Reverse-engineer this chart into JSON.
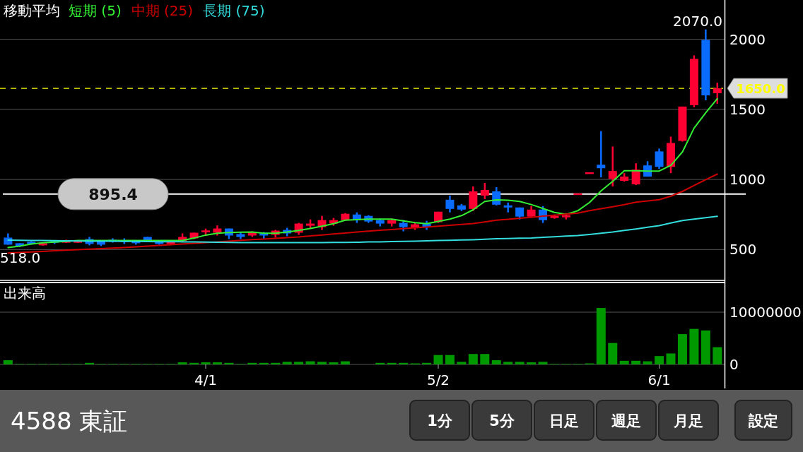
{
  "chart_data": [
    {
      "type": "candlestick",
      "title": "移動平均",
      "legend": "top",
      "grid": "y",
      "tick_labels": "y",
      "categories": [
        null,
        null,
        null,
        null,
        null,
        null,
        null,
        null,
        null,
        null,
        null,
        null,
        null,
        null,
        null,
        null,
        null,
        null,
        null,
        null,
        null,
        null,
        null,
        null,
        null,
        null,
        null,
        null,
        null,
        null,
        null,
        null,
        null,
        null,
        null,
        null,
        null,
        null,
        null,
        null,
        null,
        null,
        null,
        null,
        null,
        null,
        null,
        null,
        null,
        null,
        null,
        null,
        null,
        null,
        null,
        null,
        null,
        null,
        null,
        null,
        null,
        null
      ],
      "ohlc": [
        [
          585,
          615,
          535,
          535
        ],
        [
          545,
          545,
          518,
          525
        ],
        [
          555,
          560,
          535,
          540
        ],
        [
          530,
          550,
          528,
          545
        ],
        [
          555,
          560,
          540,
          545
        ],
        [
          550,
          570,
          548,
          555
        ],
        [
          550,
          558,
          548,
          555
        ],
        [
          575,
          590,
          530,
          540
        ],
        [
          560,
          560,
          525,
          535
        ],
        [
          570,
          580,
          550,
          555
        ],
        [
          560,
          580,
          540,
          550
        ],
        [
          560,
          560,
          535,
          545
        ],
        [
          590,
          590,
          555,
          555
        ],
        [
          555,
          560,
          535,
          540
        ],
        [
          540,
          560,
          535,
          555
        ],
        [
          560,
          615,
          555,
          590
        ],
        [
          580,
          620,
          575,
          620
        ],
        [
          620,
          650,
          600,
          630
        ],
        [
          620,
          672,
          600,
          650
        ],
        [
          650,
          650,
          575,
          600
        ],
        [
          610,
          625,
          575,
          590
        ],
        [
          600,
          630,
          590,
          625
        ],
        [
          620,
          625,
          578,
          600
        ],
        [
          605,
          640,
          585,
          635
        ],
        [
          640,
          655,
          595,
          615
        ],
        [
          620,
          690,
          605,
          685
        ],
        [
          670,
          715,
          650,
          685
        ],
        [
          660,
          740,
          640,
          710
        ],
        [
          685,
          725,
          670,
          710
        ],
        [
          710,
          760,
          705,
          755
        ],
        [
          750,
          765,
          690,
          710
        ],
        [
          740,
          745,
          690,
          700
        ],
        [
          710,
          720,
          665,
          685
        ],
        [
          685,
          720,
          665,
          710
        ],
        [
          690,
          710,
          630,
          660
        ],
        [
          655,
          690,
          640,
          680
        ],
        [
          685,
          705,
          640,
          660
        ],
        [
          695,
          770,
          690,
          770
        ],
        [
          855,
          885,
          765,
          790
        ],
        [
          815,
          825,
          775,
          785
        ],
        [
          790,
          950,
          775,
          915
        ],
        [
          885,
          975,
          860,
          925
        ],
        [
          915,
          945,
          815,
          820
        ],
        [
          815,
          835,
          765,
          800
        ],
        [
          800,
          800,
          715,
          735
        ],
        [
          735,
          810,
          735,
          785
        ],
        [
          785,
          810,
          690,
          710
        ],
        [
          725,
          750,
          720,
          740
        ],
        [
          730,
          760,
          715,
          745
        ],
        [
          895,
          895,
          895,
          895
        ],
        [
          1045,
          1045,
          1045,
          1045
        ],
        [
          1105,
          1345,
          1015,
          1080
        ],
        [
          1005,
          1235,
          950,
          1060
        ],
        [
          990,
          1045,
          985,
          1020
        ],
        [
          965,
          1115,
          960,
          1070
        ],
        [
          1100,
          1130,
          1020,
          1020
        ],
        [
          1200,
          1220,
          1075,
          1090
        ],
        [
          1090,
          1305,
          1045,
          1260
        ],
        [
          1275,
          1520,
          1270,
          1520
        ],
        [
          1530,
          1885,
          1515,
          1860
        ],
        [
          1995,
          2070,
          1565,
          1600
        ],
        [
          1615,
          1690,
          1540,
          1650
        ]
      ],
      "colors": [
        "#0a6cff",
        "#0a6cff",
        "#0a6cff",
        "#ff0033",
        "#0a6cff",
        "#ff0033",
        "#ff0033",
        "#0a6cff",
        "#0a6cff",
        "#0a6cff",
        "#0a6cff",
        "#0a6cff",
        "#0a6cff",
        "#0a6cff",
        "#ff0033",
        "#ff0033",
        "#ff0033",
        "#ff0033",
        "#ff0033",
        "#0a6cff",
        "#0a6cff",
        "#ff0033",
        "#0a6cff",
        "#ff0033",
        "#0a6cff",
        "#ff0033",
        "#ff0033",
        "#ff0033",
        "#ff0033",
        "#ff0033",
        "#0a6cff",
        "#0a6cff",
        "#0a6cff",
        "#ff0033",
        "#0a6cff",
        "#ff0033",
        "#0a6cff",
        "#ff0033",
        "#0a6cff",
        "#0a6cff",
        "#ff0033",
        "#ff0033",
        "#0a6cff",
        "#0a6cff",
        "#0a6cff",
        "#ff0033",
        "#0a6cff",
        "#ff0033",
        "#ff0033",
        "#ff0033",
        "#ff0033",
        "#0a6cff",
        "#ff0033",
        "#ff0033",
        "#ff0033",
        "#0a6cff",
        "#0a6cff",
        "#ff0033",
        "#ff0033",
        "#ff0033",
        "#0a6cff",
        "#ff0033"
      ],
      "series": [
        {
          "name": "短期 (5)",
          "type": "line",
          "color": "#33ee33",
          "values": [
            515,
            525,
            540,
            548,
            553,
            558,
            565,
            565,
            565,
            565,
            565,
            565,
            565,
            565,
            565,
            565,
            582,
            603,
            616,
            621,
            624,
            625,
            616,
            616,
            625,
            636,
            650,
            667,
            684,
            709,
            714,
            717,
            717,
            717,
            704,
            692,
            684,
            701,
            717,
            742,
            784,
            843,
            855,
            852,
            843,
            821,
            793,
            765,
            751,
            777,
            835,
            919,
            987,
            1062,
            1062,
            1060,
            1060,
            1100,
            1197,
            1366,
            1476,
            1576
          ]
        },
        {
          "name": "中期 (25)",
          "type": "line",
          "color": "#cc0000",
          "values": [
            475,
            479,
            483,
            487,
            491,
            495,
            499,
            503,
            507,
            511,
            515,
            520,
            525,
            530,
            535,
            540,
            545,
            550,
            555,
            560,
            566,
            571,
            575,
            580,
            585,
            590,
            597,
            604,
            611,
            618,
            625,
            631,
            637,
            643,
            649,
            655,
            661,
            667,
            673,
            679,
            685,
            697,
            709,
            716,
            723,
            730,
            738,
            745,
            752,
            760,
            778,
            791,
            805,
            820,
            838,
            847,
            856,
            881,
            915,
            957,
            999,
            1038
          ]
        },
        {
          "name": "長期 (75)",
          "type": "line",
          "color": "#33dddd",
          "values": [
            567,
            566,
            565,
            564,
            563,
            562,
            561,
            560,
            560,
            559,
            558,
            558,
            557,
            556,
            556,
            555,
            554,
            553,
            552,
            551,
            550,
            550,
            550,
            549,
            549,
            549,
            550,
            550,
            551,
            551,
            552,
            554,
            555,
            557,
            558,
            560,
            562,
            564,
            566,
            568,
            570,
            573,
            577,
            579,
            581,
            583,
            587,
            591,
            596,
            600,
            608,
            616,
            625,
            636,
            647,
            659,
            671,
            689,
            707,
            717,
            727,
            737
          ]
        }
      ],
      "ylim": [
        275,
        2280
      ],
      "yticks": [
        500,
        1000,
        1500,
        2000
      ],
      "ref_lines": [
        {
          "axis": "y",
          "value": 1650,
          "label": "1650.0",
          "color": "#ffff00",
          "line_style": "dashed"
        },
        {
          "axis": "y",
          "value": 895.4,
          "label": "895.4",
          "color": "#ffffff"
        }
      ],
      "annotations": [
        "2070.0",
        "518.0"
      ]
    },
    {
      "type": "bar",
      "title": "出来高",
      "grid": "y",
      "color": "#009900",
      "categories": [
        null,
        null,
        null,
        null,
        null,
        null,
        null,
        null,
        null,
        null,
        null,
        null,
        null,
        null,
        null,
        null,
        null,
        "4/1",
        null,
        null,
        null,
        null,
        null,
        null,
        null,
        null,
        null,
        null,
        null,
        null,
        null,
        null,
        null,
        null,
        null,
        null,
        null,
        "5/2",
        null,
        null,
        null,
        null,
        null,
        null,
        null,
        null,
        null,
        null,
        null,
        null,
        null,
        null,
        null,
        null,
        null,
        null,
        "6/1",
        null,
        null,
        null,
        null,
        null
      ],
      "values": [
        800000,
        100000,
        100000,
        100000,
        100000,
        100000,
        100000,
        300000,
        100000,
        100000,
        100000,
        100000,
        100000,
        100000,
        100000,
        400000,
        300000,
        400000,
        400000,
        300000,
        100000,
        300000,
        300000,
        300000,
        500000,
        500000,
        600000,
        500000,
        400000,
        600000,
        null,
        null,
        300000,
        300000,
        300000,
        200000,
        300000,
        1800000,
        1800000,
        500000,
        2000000,
        2000000,
        800000,
        500000,
        500000,
        400000,
        500000,
        100000,
        100000,
        100000,
        200000,
        10800000,
        4100000,
        700000,
        700000,
        600000,
        1600000,
        2100000,
        5800000,
        6800000,
        6500000,
        3300000
      ],
      "ylim": [
        0,
        15676000
      ],
      "yticks": [
        0,
        10000000
      ]
    },
    {
      "type": "other",
      "annotations": [
        "4588 東証",
        "1分",
        "5分",
        "日足",
        "週足",
        "月足",
        "設定"
      ]
    }
  ]
}
